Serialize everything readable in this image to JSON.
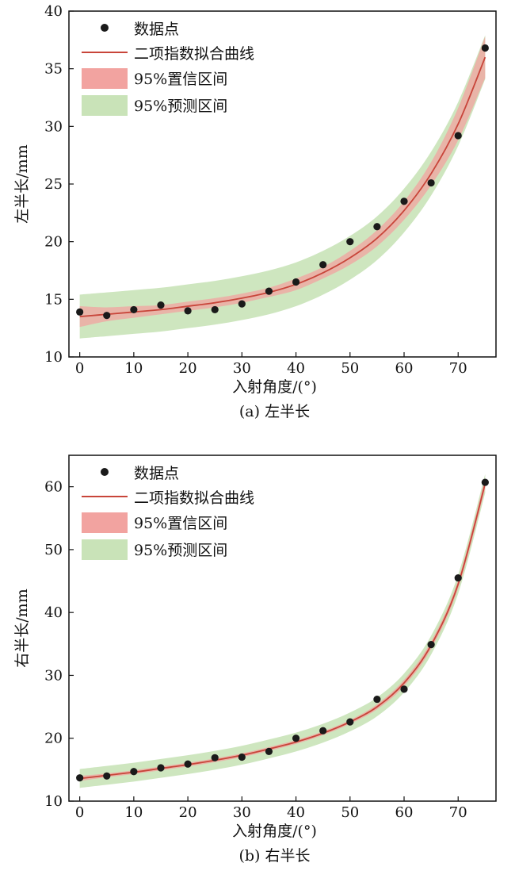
{
  "chart_data": [
    {
      "type": "scatter",
      "caption": "(a) 左半长",
      "xlabel": "入射角度/(°)",
      "ylabel": "左半长/mm",
      "xlim": [
        -2,
        77
      ],
      "ylim": [
        10,
        40
      ],
      "xticks": [
        0,
        10,
        20,
        30,
        40,
        50,
        60,
        70
      ],
      "yticks": [
        10,
        15,
        20,
        25,
        30,
        35,
        40
      ],
      "legend_position": "top-left",
      "legend": {
        "points": "数据点",
        "fit": "二项指数拟合曲线",
        "confidence": "95%置信区间",
        "prediction": "95%预测区间"
      },
      "points": {
        "x": [
          0,
          5,
          10,
          15,
          20,
          25,
          30,
          35,
          40,
          45,
          50,
          55,
          60,
          65,
          70,
          75
        ],
        "y": [
          13.9,
          13.6,
          14.1,
          14.5,
          14.0,
          14.1,
          14.6,
          15.7,
          16.5,
          18.0,
          20.0,
          21.3,
          23.5,
          25.1,
          29.2,
          36.8
        ]
      },
      "fit": {
        "x": [
          0,
          5,
          10,
          15,
          20,
          25,
          30,
          35,
          40,
          45,
          50,
          55,
          60,
          65,
          70,
          75
        ],
        "y": [
          13.5,
          13.7,
          13.9,
          14.1,
          14.4,
          14.7,
          15.1,
          15.6,
          16.3,
          17.3,
          18.6,
          20.3,
          22.7,
          25.9,
          30.2,
          36.0
        ]
      },
      "confidence_band": {
        "lower": [
          12.6,
          13.1,
          13.4,
          13.7,
          14.0,
          14.3,
          14.7,
          15.2,
          15.8,
          16.8,
          18.0,
          19.6,
          21.9,
          24.9,
          28.8,
          34.2
        ],
        "upper": [
          14.4,
          14.3,
          14.4,
          14.5,
          14.8,
          15.1,
          15.5,
          16.0,
          16.8,
          17.8,
          19.2,
          21.0,
          23.5,
          26.9,
          31.6,
          37.8
        ]
      },
      "prediction_band": {
        "lower": [
          11.6,
          11.8,
          12.0,
          12.2,
          12.5,
          12.8,
          13.2,
          13.7,
          14.4,
          15.4,
          16.7,
          18.4,
          20.8,
          24.0,
          28.3,
          34.1
        ],
        "upper": [
          15.4,
          15.6,
          15.8,
          16.0,
          16.3,
          16.6,
          17.0,
          17.5,
          18.2,
          19.2,
          20.5,
          22.2,
          24.6,
          27.8,
          32.1,
          37.9
        ]
      },
      "colors": {
        "points": "#1a1a1a",
        "fit": "#c8453a",
        "confidence": "#f2a3a0",
        "prediction": "#c9e3b8"
      }
    },
    {
      "type": "scatter",
      "caption": "(b) 右半长",
      "xlabel": "入射角度/(°)",
      "ylabel": "右半长/mm",
      "xlim": [
        -2,
        77
      ],
      "ylim": [
        10,
        65
      ],
      "xticks": [
        0,
        10,
        20,
        30,
        40,
        50,
        60,
        70
      ],
      "yticks": [
        10,
        20,
        30,
        40,
        50,
        60
      ],
      "legend_position": "top-left",
      "legend": {
        "points": "数据点",
        "fit": "二项指数拟合曲线",
        "confidence": "95%置信区间",
        "prediction": "95%预测区间"
      },
      "points": {
        "x": [
          0,
          5,
          10,
          15,
          20,
          25,
          30,
          35,
          40,
          45,
          50,
          55,
          60,
          65,
          70,
          75
        ],
        "y": [
          13.7,
          14.0,
          14.7,
          15.3,
          15.9,
          16.9,
          17.0,
          17.9,
          20.0,
          21.2,
          22.6,
          26.2,
          27.8,
          34.9,
          45.5,
          60.7
        ]
      },
      "fit": {
        "x": [
          0,
          5,
          10,
          15,
          20,
          25,
          30,
          35,
          40,
          45,
          50,
          55,
          60,
          65,
          70,
          75
        ],
        "y": [
          13.6,
          14.1,
          14.6,
          15.2,
          15.8,
          16.5,
          17.3,
          18.3,
          19.4,
          20.8,
          22.6,
          25.0,
          28.8,
          34.8,
          44.5,
          60.5
        ]
      },
      "confidence_band": {
        "lower": [
          13.2,
          13.8,
          14.3,
          14.9,
          15.5,
          16.2,
          17.0,
          18.0,
          19.1,
          20.5,
          22.3,
          24.6,
          28.3,
          34.2,
          43.8,
          59.6
        ],
        "upper": [
          14.0,
          14.4,
          14.9,
          15.5,
          16.1,
          16.8,
          17.6,
          18.6,
          19.7,
          21.1,
          22.9,
          25.4,
          29.3,
          35.4,
          45.2,
          61.4
        ]
      },
      "prediction_band": {
        "lower": [
          12.1,
          12.6,
          13.1,
          13.7,
          14.3,
          15.0,
          15.8,
          16.8,
          17.9,
          19.3,
          21.1,
          23.5,
          27.3,
          33.3,
          43.0,
          59.0
        ],
        "upper": [
          15.1,
          15.6,
          16.1,
          16.7,
          17.3,
          18.0,
          18.8,
          19.8,
          20.9,
          22.3,
          24.1,
          26.5,
          30.3,
          36.3,
          46.0,
          62.0
        ]
      },
      "colors": {
        "points": "#1a1a1a",
        "fit": "#c8453a",
        "confidence": "#f2a3a0",
        "prediction": "#c9e3b8"
      }
    }
  ]
}
